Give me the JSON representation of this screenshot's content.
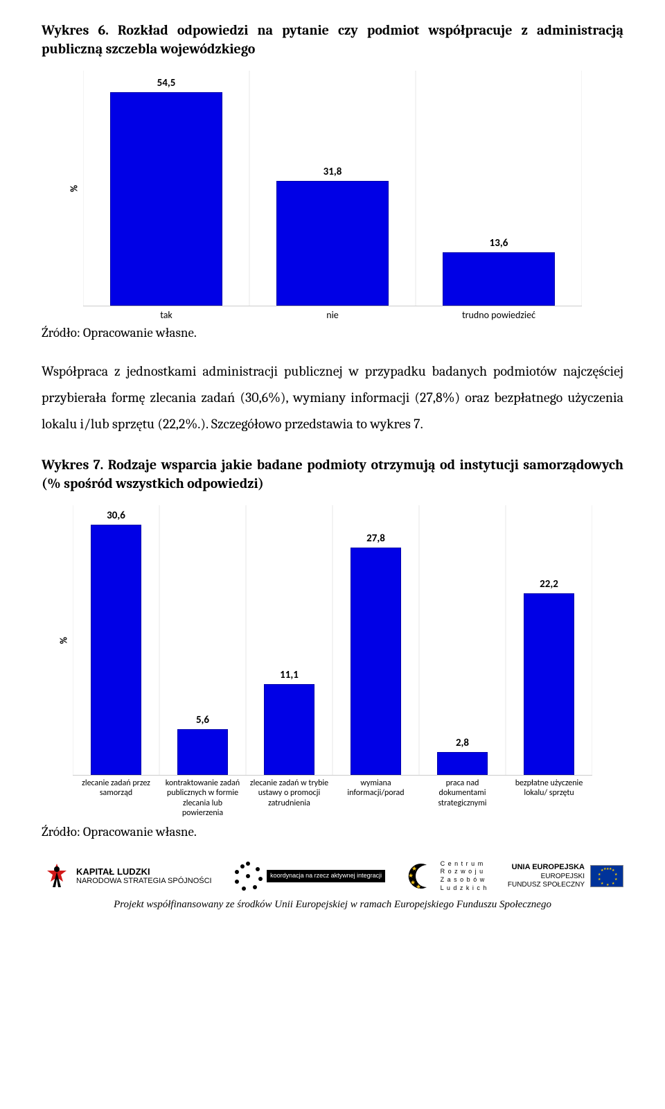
{
  "heading1": "Wykres 6. Rozkład odpowiedzi na pytanie czy podmiot współpracuje z administracją publiczną szczebla wojewódzkiego",
  "chart1": {
    "type": "bar",
    "ylabel": "%",
    "max": 60,
    "bar_color": "#0000e6",
    "categories": [
      "tak",
      "nie",
      "trudno powiedzieć"
    ],
    "values": [
      54.5,
      31.8,
      13.6
    ],
    "labels": [
      "54,5",
      "31,8",
      "13,6"
    ]
  },
  "source": "Źródło: Opracowanie własne.",
  "paragraph": "Współpraca z jednostkami administracji publicznej w przypadku badanych podmiotów najczęściej przybierała formę zlecania zadań (30,6%), wymiany informacji (27,8%) oraz bezpłatnego użyczenia lokalu i/lub sprzętu (22,2%.). Szczegółowo przedstawia to wykres 7.",
  "heading2": "Wykres 7. Rodzaje wsparcia jakie badane podmioty otrzymują od instytucji samorządowych (% spośród wszystkich odpowiedzi)",
  "chart2": {
    "type": "bar",
    "ylabel": "%",
    "max": 33,
    "bar_color": "#0000e6",
    "categories": [
      "zlecanie zadań przez samorząd",
      "kontraktowanie zadań publicznych w formie zlecania lub powierzenia",
      "zlecanie zadań w trybie ustawy o promocji zatrudnienia",
      "wymiana informacji/porad",
      "praca nad dokumentami strategicznymi",
      "bezpłatne użyczenie lokalu/ sprzętu"
    ],
    "values": [
      30.6,
      5.6,
      11.1,
      27.8,
      2.8,
      22.2
    ],
    "labels": [
      "30,6",
      "5,6",
      "11,1",
      "27,8",
      "2,8",
      "22,2"
    ]
  },
  "source2": "Źródło: Opracowanie własne.",
  "footer": {
    "kapital_l1": "KAPITAŁ LUDZKI",
    "kapital_l2": "NARODOWA STRATEGIA SPÓJNOŚCI",
    "koord": "koordynacja na rzecz aktywnej integracji",
    "crzl": "C e n t r u m\nR o z w o j u\nZ a s o b ó w\nL u d z k i c h",
    "eu_l1": "UNIA EUROPEJSKA",
    "eu_l2": "EUROPEJSKI",
    "eu_l3": "FUNDUSZ SPOŁECZNY",
    "caption": "Projekt współfinansowany ze środków Unii Europejskiej w ramach Europejskiego Funduszu Społecznego"
  }
}
